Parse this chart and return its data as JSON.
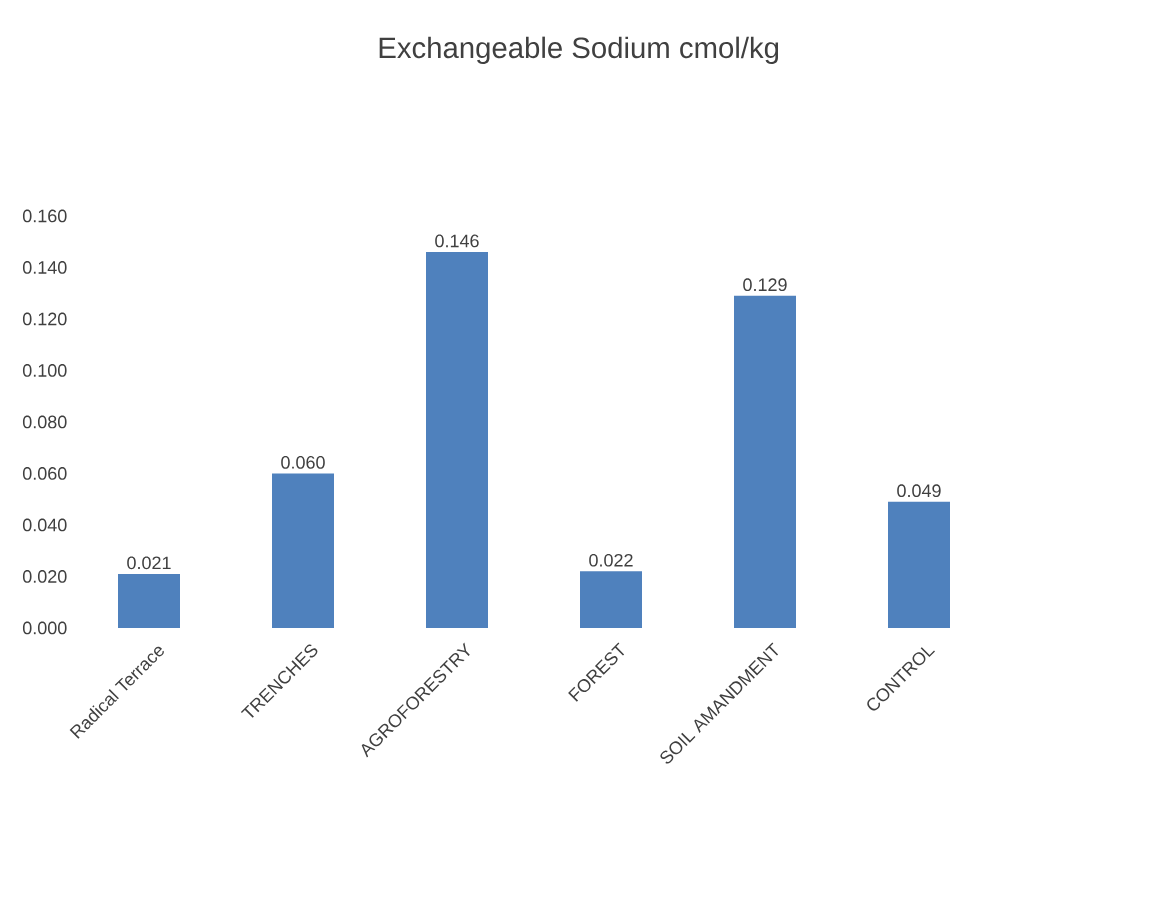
{
  "chart_data": {
    "type": "bar",
    "title": "Exchangeable Sodium cmol/kg",
    "categories": [
      "Radical Terrace",
      "TRENCHES",
      "AGROFORESTRY",
      "FOREST",
      "SOIL  AMANDMENT",
      "CONTROL"
    ],
    "values": [
      0.021,
      0.06,
      0.146,
      0.022,
      0.129,
      0.049
    ],
    "value_labels": [
      "0.021",
      "0.060",
      "0.146",
      "0.022",
      "0.129",
      "0.049"
    ],
    "color": "#4f81bd",
    "ylim": [
      0,
      0.16
    ],
    "yticks": [
      {
        "value": 0,
        "label": "0.000"
      },
      {
        "value": 0.02,
        "label": "0.020"
      },
      {
        "value": 0.04,
        "label": "0.040"
      },
      {
        "value": 0.06,
        "label": "0.060"
      },
      {
        "value": 0.08,
        "label": "0.080"
      },
      {
        "value": 0.1,
        "label": "0.100"
      },
      {
        "value": 0.12,
        "label": "0.120"
      },
      {
        "value": 0.14,
        "label": "0.140"
      },
      {
        "value": 0.16,
        "label": "0.160"
      }
    ]
  }
}
